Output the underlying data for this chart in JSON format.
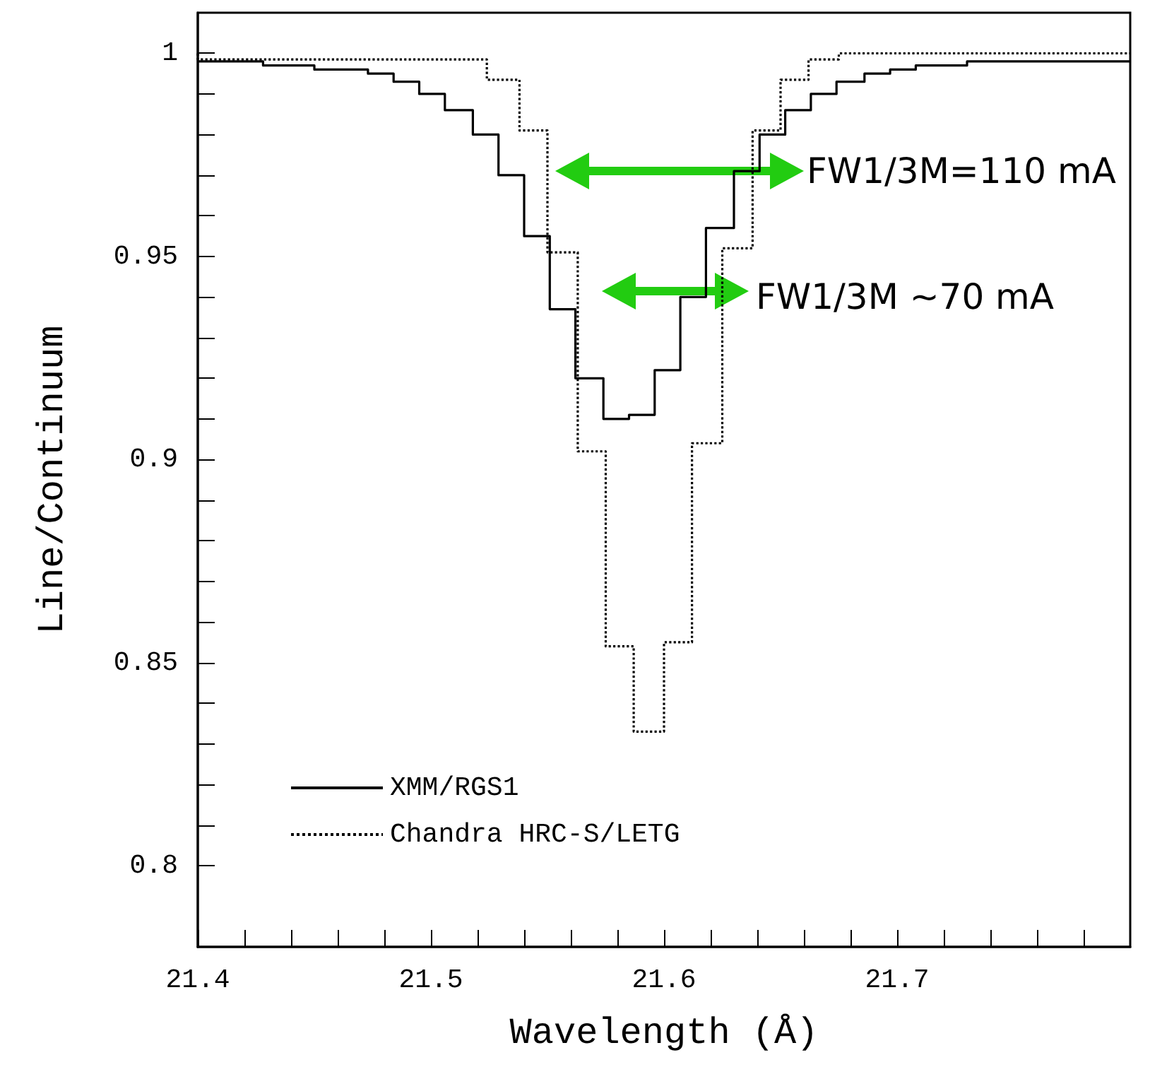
{
  "chart_data": {
    "type": "step",
    "xlabel": "Wavelength (Å)",
    "ylabel": "Line/Continuum",
    "xlim": [
      21.4,
      21.8
    ],
    "ylim": [
      0.78,
      1.01
    ],
    "xticks": [
      21.4,
      {
        "value": 21.42,
        "label": null
      },
      {
        "value": 21.44,
        "label": null
      },
      {
        "value": 21.46,
        "label": null
      },
      {
        "value": 21.48,
        "label": null
      },
      21.5,
      {
        "value": 21.52,
        "label": null
      },
      {
        "value": 21.54,
        "label": null
      },
      {
        "value": 21.56,
        "label": null
      },
      {
        "value": 21.58,
        "label": null
      },
      21.6,
      {
        "value": 21.62,
        "label": null
      },
      {
        "value": 21.64,
        "label": null
      },
      {
        "value": 21.66,
        "label": null
      },
      {
        "value": 21.68,
        "label": null
      },
      21.7,
      {
        "value": 21.72,
        "label": null
      },
      {
        "value": 21.74,
        "label": null
      },
      {
        "value": 21.76,
        "label": null
      },
      {
        "value": 21.78,
        "label": null
      }
    ],
    "yticks": [
      0.8,
      {
        "value": 0.81,
        "label": null
      },
      {
        "value": 0.82,
        "label": null
      },
      {
        "value": 0.83,
        "label": null
      },
      {
        "value": 0.84,
        "label": null
      },
      0.85,
      {
        "value": 0.86,
        "label": null
      },
      {
        "value": 0.87,
        "label": null
      },
      {
        "value": 0.88,
        "label": null
      },
      {
        "value": 0.89,
        "label": null
      },
      0.9,
      {
        "value": 0.91,
        "label": null
      },
      {
        "value": 0.92,
        "label": null
      },
      {
        "value": 0.93,
        "label": null
      },
      {
        "value": 0.94,
        "label": null
      },
      0.95,
      {
        "value": 0.96,
        "label": null
      },
      {
        "value": 0.97,
        "label": null
      },
      {
        "value": 0.98,
        "label": null
      },
      {
        "value": 0.99,
        "label": null
      },
      1
    ],
    "grid": false,
    "legend": "bottom left",
    "marker": "none",
    "series": [
      {
        "name": "XMM/RGS1",
        "color": "#000000",
        "line_style": "solid",
        "x": [
          21.4,
          21.428,
          21.439,
          21.45,
          21.462,
          21.473,
          21.484,
          21.495,
          21.506,
          21.518,
          21.529,
          21.54,
          21.551,
          21.562,
          21.574,
          21.585,
          21.596,
          21.607,
          21.618,
          21.63,
          21.641,
          21.652,
          21.663,
          21.674,
          21.686,
          21.697,
          21.708,
          21.719,
          21.73,
          21.741,
          21.753,
          21.8
        ],
        "values": [
          0.998,
          0.998,
          0.997,
          0.997,
          0.996,
          0.996,
          0.995,
          0.993,
          0.99,
          0.986,
          0.98,
          0.97,
          0.955,
          0.937,
          0.92,
          0.91,
          0.911,
          0.922,
          0.94,
          0.957,
          0.971,
          0.98,
          0.986,
          0.99,
          0.993,
          0.995,
          0.996,
          0.997,
          0.997,
          0.998,
          0.998,
          0.998
        ]
      },
      {
        "name": "Chandra HRC-S/LETG",
        "color": "#000000",
        "line_style": "dotted",
        "x": [
          21.4,
          21.524,
          21.538,
          21.55,
          21.563,
          21.575,
          21.587,
          21.6,
          21.612,
          21.625,
          21.638,
          21.65,
          21.662,
          21.675,
          21.69,
          21.8
        ],
        "values": [
          1.0,
          0.9985,
          0.9935,
          0.981,
          0.951,
          0.902,
          0.854,
          0.833,
          0.855,
          0.904,
          0.952,
          0.981,
          0.9935,
          0.9985,
          1.0,
          1.0
        ]
      }
    ],
    "annotations": [
      "FW1/3M=110 mA",
      "FW1/3M ~70 mA"
    ]
  }
}
